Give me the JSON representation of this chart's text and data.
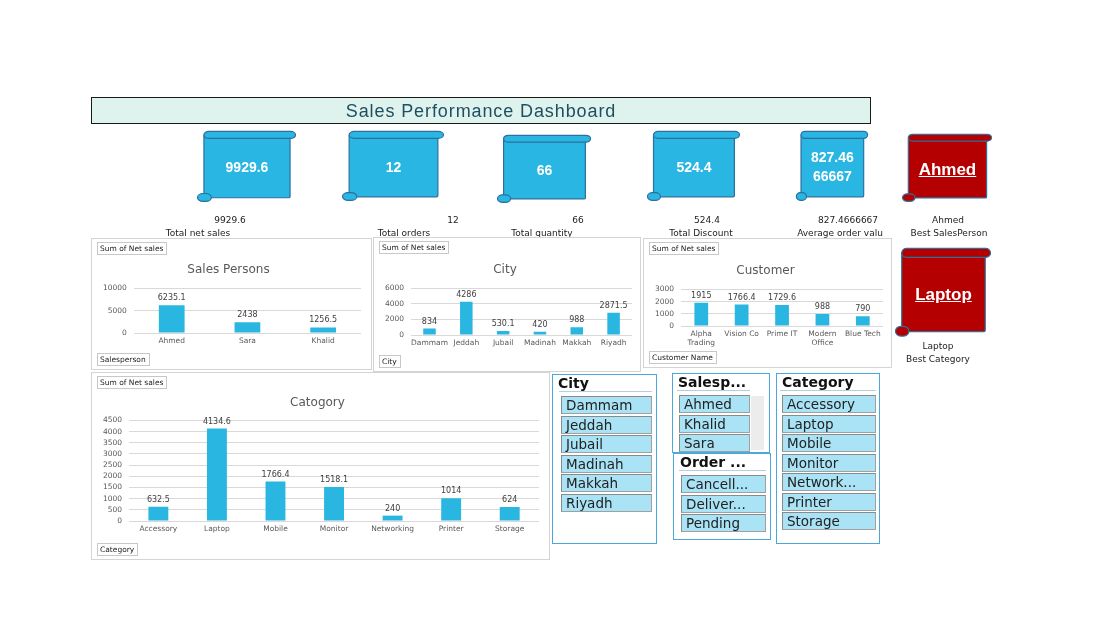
{
  "chart_data": [
    {
      "type": "other",
      "title": "Sales Performance Dashboard"
    },
    {
      "type": "other",
      "title": "Total net sales",
      "annotations": [
        "9929.6",
        "9929.6"
      ],
      "color": "#29b6e2"
    },
    {
      "type": "other",
      "title": "Total orders",
      "annotations": [
        "12",
        "12"
      ],
      "color": "#29b6e2"
    },
    {
      "type": "other",
      "title": "Total quantity",
      "annotations": [
        "66",
        "66"
      ],
      "color": "#29b6e2"
    },
    {
      "type": "other",
      "title": "Total Discount",
      "annotations": [
        "524.4",
        "524.4"
      ],
      "color": "#29b6e2"
    },
    {
      "type": "other",
      "title": "Average order valu",
      "annotations": [
        "827.4666667",
        "827.4666667"
      ],
      "color": "#29b6e2"
    },
    {
      "type": "other",
      "title": "Best SalesPerson",
      "annotations": [
        "Ahmed",
        "Ahmed"
      ],
      "color": "#b40000"
    },
    {
      "type": "bar",
      "title": "Sales Persons",
      "ylabel": "Sum of Net sales",
      "xlabel": "Salesperson",
      "categories": [
        "Ahmed",
        "Sara",
        "Khalid"
      ],
      "values": [
        6235.1,
        2438,
        1256.5
      ],
      "color": "#29b6e0",
      "ylim": [
        0,
        10000
      ],
      "yticks": [
        0,
        5000,
        10000
      ],
      "grid": "y",
      "data_labels": true
    },
    {
      "type": "bar",
      "title": "City",
      "ylabel": "Sum of Net sales",
      "xlabel": "City",
      "categories": [
        "Dammam",
        "Jeddah",
        "Jubail",
        "Madinah",
        "Makkah",
        "Riyadh"
      ],
      "values": [
        834,
        4286,
        530.1,
        420,
        988,
        2871.5
      ],
      "color": "#29b6e0",
      "ylim": [
        0,
        6000
      ],
      "yticks": [
        0,
        2000,
        4000,
        6000
      ],
      "grid": "y",
      "data_labels": true
    },
    {
      "type": "bar",
      "title": "Customer",
      "ylabel": "Sum of Net sales",
      "xlabel": "Customer Name",
      "categories": [
        "Alpha Trading",
        "Vision Co",
        "Prime IT",
        "Modern Office",
        "Blue Tech"
      ],
      "values": [
        1915,
        1766.4,
        1729.6,
        988,
        790
      ],
      "color": "#29b6e0",
      "ylim": [
        0,
        3000
      ],
      "yticks": [
        0,
        1000,
        2000,
        3000
      ],
      "grid": "y",
      "data_labels": true
    },
    {
      "type": "other",
      "title": "Best Category",
      "annotations": [
        "Laptop",
        "Laptop"
      ],
      "color": "#b40000"
    },
    {
      "type": "bar",
      "title": "Catogory",
      "ylabel": "Sum of Net sales",
      "xlabel": "Category",
      "categories": [
        "Accessory",
        "Laptop",
        "Mobile",
        "Monitor",
        "Networking",
        "Printer",
        "Storage"
      ],
      "values": [
        632.5,
        4134.6,
        1766.4,
        1518.1,
        240,
        1014,
        624
      ],
      "color": "#29b6e0",
      "ylim": [
        0,
        4500
      ],
      "yticks": [
        0,
        500,
        1000,
        1500,
        2000,
        2500,
        3000,
        3500,
        4000,
        4500
      ],
      "grid": "y",
      "data_labels": true
    },
    {
      "type": "other",
      "title": "City",
      "annotations": [
        "Dammam",
        "Jeddah",
        "Jubail",
        "Madinah",
        "Makkah",
        "Riyadh"
      ]
    },
    {
      "type": "other",
      "title": "Salesp...",
      "annotations": [
        "Ahmed",
        "Khalid",
        "Sara"
      ]
    },
    {
      "type": "other",
      "title": "Order ...",
      "annotations": [
        "Cancell...",
        "Deliver...",
        "Pending"
      ]
    },
    {
      "type": "other",
      "title": "Category",
      "annotations": [
        "Accessory",
        "Laptop",
        "Mobile",
        "Monitor",
        "Network...",
        "Printer",
        "Storage"
      ]
    }
  ]
}
